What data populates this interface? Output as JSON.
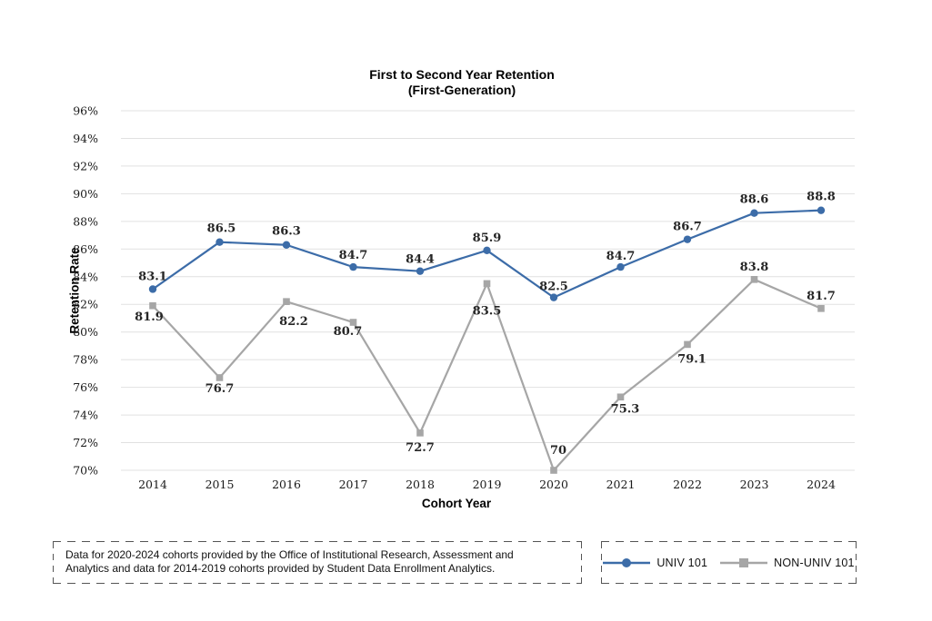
{
  "title": {
    "line1": "First to Second Year Retention",
    "line2": "(First-Generation)"
  },
  "chart_data": {
    "type": "line",
    "x": [
      "2014",
      "2015",
      "2016",
      "2017",
      "2018",
      "2019",
      "2020",
      "2021",
      "2022",
      "2023",
      "2024"
    ],
    "xlabel": "Cohort Year",
    "ylabel": "Retention Rate",
    "ylim": [
      70,
      96
    ],
    "ytick_step": 2,
    "ytick_suffix": "%",
    "grid": true,
    "legend_position": "bottom-right",
    "gridline_color": "#e1e1e1",
    "series": [
      {
        "name": "UNIV 101",
        "color": "#3c6ca8",
        "marker": "circle",
        "values": [
          83.1,
          86.5,
          86.3,
          84.7,
          84.4,
          85.9,
          82.5,
          84.7,
          86.7,
          88.6,
          88.8
        ],
        "label_offsets": [
          [
            0,
            -10
          ],
          [
            2,
            -11
          ],
          [
            0,
            -11
          ],
          [
            0,
            -9
          ],
          [
            0,
            -9
          ],
          [
            0,
            -10
          ],
          [
            0,
            -8
          ],
          [
            0,
            -8
          ],
          [
            0,
            -10
          ],
          [
            0,
            -11
          ],
          [
            0,
            -11
          ]
        ]
      },
      {
        "name": "NON-UNIV 101",
        "color": "#a6a6a6",
        "marker": "square",
        "values": [
          81.9,
          76.7,
          82.2,
          80.7,
          72.7,
          83.5,
          70,
          75.3,
          79.1,
          83.8,
          81.7
        ],
        "label_offsets": [
          [
            -4,
            16
          ],
          [
            0,
            16
          ],
          [
            8,
            26
          ],
          [
            -6,
            14
          ],
          [
            0,
            20
          ],
          [
            0,
            34
          ],
          [
            5,
            -18
          ],
          [
            5,
            17
          ],
          [
            5,
            20
          ],
          [
            0,
            -10
          ],
          [
            0,
            -10
          ]
        ]
      }
    ]
  },
  "note": {
    "line1": "Data for 2020-2024 cohorts provided by the Office of Institutional Research, Assessment and",
    "line2": "Analytics and data for 2014-2019 cohorts provided by Student Data Enrollment Analytics."
  }
}
